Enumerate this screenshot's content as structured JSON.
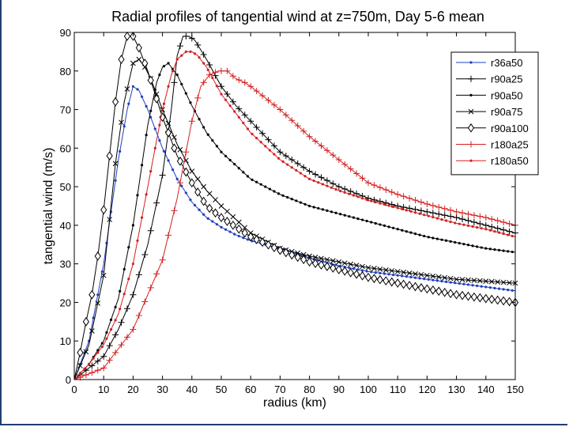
{
  "chart_data": {
    "type": "line",
    "title": "Radial profiles of tangential wind at z=750m, Day 5-6 mean",
    "xlabel": "radius (km)",
    "ylabel": "tangential wind (m/s)",
    "xlim": [
      0,
      150
    ],
    "ylim": [
      0,
      90
    ],
    "xticks": [
      0,
      10,
      20,
      30,
      40,
      50,
      60,
      70,
      80,
      90,
      100,
      110,
      120,
      130,
      140,
      150
    ],
    "yticks": [
      0,
      10,
      20,
      30,
      40,
      50,
      60,
      70,
      80,
      90
    ],
    "grid": false,
    "legend_position": "top-right",
    "series": [
      {
        "name": "r36a50",
        "color": "#1f3fbf",
        "marker": "dot",
        "x": [
          0,
          5,
          10,
          15,
          18,
          20,
          22,
          25,
          30,
          35,
          40,
          45,
          50,
          55,
          60,
          70,
          80,
          90,
          100,
          110,
          120,
          130,
          140,
          150
        ],
        "y": [
          0,
          10,
          30,
          57,
          70,
          76,
          75,
          70,
          60,
          52,
          46,
          42,
          39.5,
          37.5,
          36,
          34,
          31.5,
          29.5,
          28,
          27,
          26,
          25,
          24,
          23
        ]
      },
      {
        "name": "r90a25",
        "color": "#000000",
        "marker": "plus",
        "x": [
          0,
          10,
          15,
          20,
          25,
          30,
          33,
          35,
          37,
          39,
          41,
          45,
          50,
          55,
          60,
          70,
          80,
          90,
          100,
          110,
          120,
          130,
          140,
          150
        ],
        "y": [
          0,
          6,
          13,
          22,
          35,
          53,
          70,
          84,
          89,
          89,
          88,
          83,
          76,
          71,
          67,
          59,
          54,
          50,
          47,
          45,
          43.5,
          42,
          40,
          38
        ]
      },
      {
        "name": "r90a50",
        "color": "#000000",
        "marker": "dot",
        "x": [
          0,
          5,
          10,
          15,
          20,
          25,
          28,
          30,
          32,
          35,
          40,
          45,
          50,
          55,
          60,
          70,
          80,
          90,
          100,
          110,
          120,
          130,
          140,
          150
        ],
        "y": [
          0,
          4,
          10,
          21,
          40,
          66,
          77,
          81,
          82,
          79,
          71,
          64,
          59,
          55.5,
          52,
          48,
          45,
          43,
          41,
          39,
          37,
          35.5,
          34,
          33
        ]
      },
      {
        "name": "r90a75",
        "color": "#000000",
        "marker": "x",
        "x": [
          0,
          5,
          10,
          14,
          17,
          20,
          22,
          24,
          26,
          30,
          35,
          40,
          45,
          50,
          60,
          70,
          80,
          90,
          100,
          110,
          120,
          130,
          140,
          150
        ],
        "y": [
          0,
          9,
          27,
          56,
          72,
          82,
          83,
          81,
          78,
          70,
          61,
          54,
          49,
          45,
          38,
          34,
          32,
          30.5,
          29,
          28,
          27,
          26,
          25.5,
          25
        ]
      },
      {
        "name": "r90a100",
        "color": "#000000",
        "marker": "diamond",
        "x": [
          0,
          2,
          4,
          6,
          8,
          10,
          12,
          14,
          16,
          18,
          20,
          22,
          25,
          30,
          35,
          40,
          45,
          50,
          55,
          60,
          70,
          80,
          90,
          100,
          110,
          120,
          130,
          140,
          150
        ],
        "y": [
          0,
          7,
          15,
          22,
          32,
          44,
          58,
          72,
          83,
          89,
          89,
          86,
          80,
          68,
          58,
          51,
          45,
          42,
          39.5,
          37,
          33.5,
          30.5,
          28.5,
          26.5,
          25,
          23.5,
          22,
          21,
          20
        ]
      },
      {
        "name": "r180a25",
        "color": "#d42020",
        "marker": "plus",
        "x": [
          0,
          10,
          15,
          20,
          25,
          30,
          35,
          40,
          43,
          46,
          49,
          52,
          55,
          58,
          60,
          65,
          70,
          80,
          90,
          100,
          110,
          120,
          130,
          140,
          150
        ],
        "y": [
          0,
          3,
          8,
          13,
          22,
          31,
          47,
          67,
          76,
          79,
          80,
          80,
          78,
          77,
          76,
          73,
          70,
          63,
          57,
          51,
          48,
          45.5,
          43.5,
          42,
          40
        ]
      },
      {
        "name": "r180a50",
        "color": "#d42020",
        "marker": "dot",
        "x": [
          0,
          5,
          10,
          15,
          20,
          25,
          30,
          33,
          35,
          38,
          40,
          42,
          45,
          50,
          55,
          60,
          70,
          80,
          90,
          100,
          110,
          120,
          130,
          140,
          150
        ],
        "y": [
          0,
          4,
          9,
          17,
          30,
          50,
          70,
          79,
          83,
          85,
          85,
          84,
          81,
          74,
          69,
          64,
          57,
          52,
          49,
          46.5,
          44.5,
          42.5,
          40.5,
          39,
          37
        ]
      }
    ]
  }
}
